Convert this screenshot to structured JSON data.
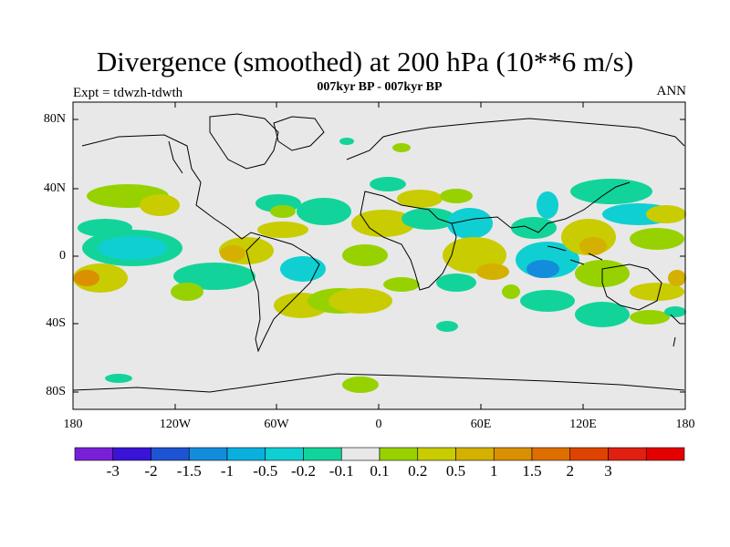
{
  "title": "Divergence (smoothed) at 200 hPa (10**6 m/s)",
  "subtitle": "007kyr BP - 007kyr BP",
  "left_label": "Expt = tdwzh-tdwth",
  "right_label": "ANN",
  "lat_labels": [
    "80N",
    "40N",
    "0",
    "40S",
    "80S"
  ],
  "lon_labels": [
    "180",
    "120W",
    "60W",
    "0",
    "60E",
    "120E",
    "180"
  ],
  "colorbar": {
    "colors": [
      "#7a1fd8",
      "#3a14d6",
      "#1e54d3",
      "#138ddb",
      "#0ab0dd",
      "#10cfd2",
      "#12d49a",
      "#e8e8e8",
      "#97d200",
      "#c8cc00",
      "#d4b000",
      "#da9000",
      "#de6e00",
      "#de4400",
      "#e02010",
      "#e50000"
    ],
    "labels": [
      "-3",
      "-2",
      "-1.5",
      "-1",
      "-0.5",
      "-0.2",
      "-0.1",
      "0.1",
      "0.2",
      "0.5",
      "1",
      "1.5",
      "2",
      "3"
    ]
  },
  "colors": {
    "background": "#e8e8e8",
    "neg_weak": "#12d49a",
    "neg_mid": "#10cfd2",
    "neg_strong": "#0ab0dd",
    "neg_max": "#138ddb",
    "pos_weak": "#97d200",
    "pos_mid": "#c8cc00",
    "pos_strong": "#d4b000",
    "pos_max": "#da9000"
  }
}
